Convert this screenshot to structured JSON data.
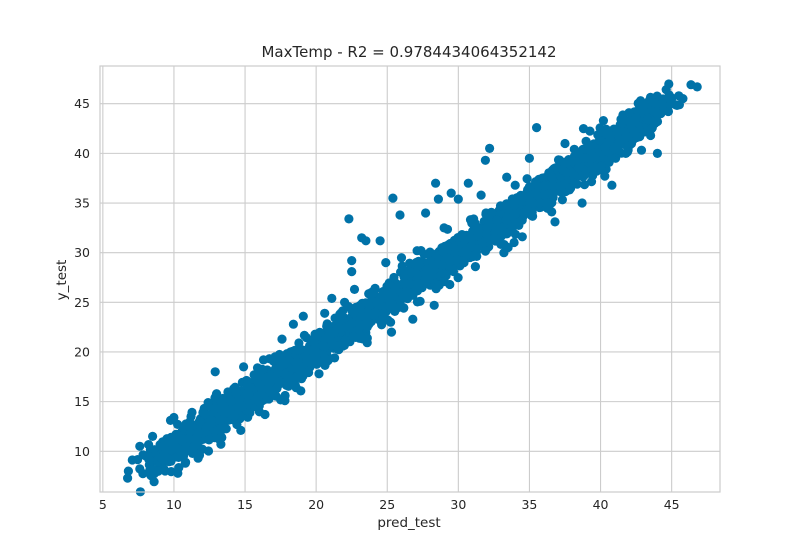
{
  "chart_data": {
    "type": "scatter",
    "title": "MaxTemp - R2 = 0.9784434064352142",
    "xlabel": "pred_test",
    "ylabel": "y_test",
    "xlim": [
      4.8,
      48.4
    ],
    "ylim": [
      5.9,
      48.8
    ],
    "x_ticks": [
      5,
      10,
      15,
      20,
      25,
      30,
      35,
      40,
      45
    ],
    "x_tick_labels": [
      "5",
      "10",
      "15",
      "20",
      "25",
      "30",
      "35",
      "40",
      "45"
    ],
    "y_ticks": [
      10,
      15,
      20,
      25,
      30,
      35,
      40,
      45
    ],
    "y_tick_labels": [
      "10",
      "15",
      "20",
      "25",
      "30",
      "35",
      "40",
      "45"
    ],
    "grid": true,
    "legend": "none",
    "marker_color": "#0072a8",
    "grid_color": "#cccccc",
    "background": "#ffffff",
    "series": [
      {
        "points_summary": "dense cloud following y ≈ x from ~7 to ~47 (main band, residual sd ≈ 0.9)",
        "band": {
          "x_start": 7.5,
          "x_end": 45.5,
          "residual_sd": 0.9
        },
        "notable_points": [
          [
            6.8,
            8.0
          ],
          [
            8.3,
            8.1
          ],
          [
            7.6,
            10.5
          ],
          [
            8.5,
            11.5
          ],
          [
            9.2,
            9.2
          ],
          [
            9.8,
            11.4
          ],
          [
            10.0,
            13.4
          ],
          [
            11.2,
            13.5
          ],
          [
            13.0,
            15.8
          ],
          [
            12.9,
            18.0
          ],
          [
            14.2,
            16.3
          ],
          [
            14.9,
            18.5
          ],
          [
            16.0,
            18.3
          ],
          [
            16.3,
            19.2
          ],
          [
            17.6,
            21.3
          ],
          [
            18.4,
            22.8
          ],
          [
            19.1,
            23.6
          ],
          [
            20.6,
            23.9
          ],
          [
            21.1,
            25.4
          ],
          [
            22.0,
            25.0
          ],
          [
            22.7,
            26.3
          ],
          [
            22.5,
            28.1
          ],
          [
            22.5,
            29.2
          ],
          [
            23.5,
            31.2
          ],
          [
            22.3,
            33.4
          ],
          [
            23.2,
            31.5
          ],
          [
            24.9,
            29.0
          ],
          [
            24.5,
            31.2
          ],
          [
            25.4,
            35.5
          ],
          [
            25.9,
            33.8
          ],
          [
            27.1,
            30.2
          ],
          [
            27.7,
            34.0
          ],
          [
            28.6,
            35.4
          ],
          [
            29.5,
            36.0
          ],
          [
            28.4,
            37.0
          ],
          [
            30.0,
            35.4
          ],
          [
            30.7,
            37.0
          ],
          [
            31.9,
            39.3
          ],
          [
            32.2,
            40.5
          ],
          [
            31.6,
            35.8
          ],
          [
            33.4,
            37.6
          ],
          [
            35.5,
            42.6
          ],
          [
            35.0,
            39.5
          ],
          [
            37.5,
            41.0
          ],
          [
            38.8,
            42.5
          ],
          [
            39.2,
            40.8
          ],
          [
            40.2,
            43.3
          ],
          [
            42.0,
            44.1
          ],
          [
            43.6,
            42.5
          ],
          [
            44.3,
            45.0
          ],
          [
            45.5,
            45.8
          ],
          [
            46.8,
            46.7
          ],
          [
            44.0,
            40.0
          ],
          [
            40.8,
            36.8
          ],
          [
            38.7,
            35.0
          ],
          [
            36.8,
            33.1
          ],
          [
            34.5,
            31.6
          ],
          [
            33.2,
            30.0
          ],
          [
            31.2,
            28.6
          ],
          [
            29.4,
            26.8
          ],
          [
            28.3,
            24.7
          ],
          [
            26.8,
            23.3
          ],
          [
            25.3,
            22.0
          ],
          [
            23.6,
            21.4
          ],
          [
            21.3,
            19.4
          ],
          [
            20.2,
            17.8
          ],
          [
            18.6,
            16.4
          ],
          [
            17.8,
            15.1
          ],
          [
            16.4,
            13.7
          ],
          [
            14.7,
            12.1
          ],
          [
            13.3,
            10.7
          ],
          [
            11.7,
            9.3
          ],
          [
            10.8,
            8.8
          ],
          [
            12.4,
            14.9
          ],
          [
            15.2,
            15.6
          ],
          [
            26.0,
            29.5
          ],
          [
            29.0,
            32.5
          ],
          [
            34.0,
            36.8
          ],
          [
            38.0,
            39.2
          ],
          [
            42.5,
            43.6
          ]
        ]
      }
    ]
  }
}
